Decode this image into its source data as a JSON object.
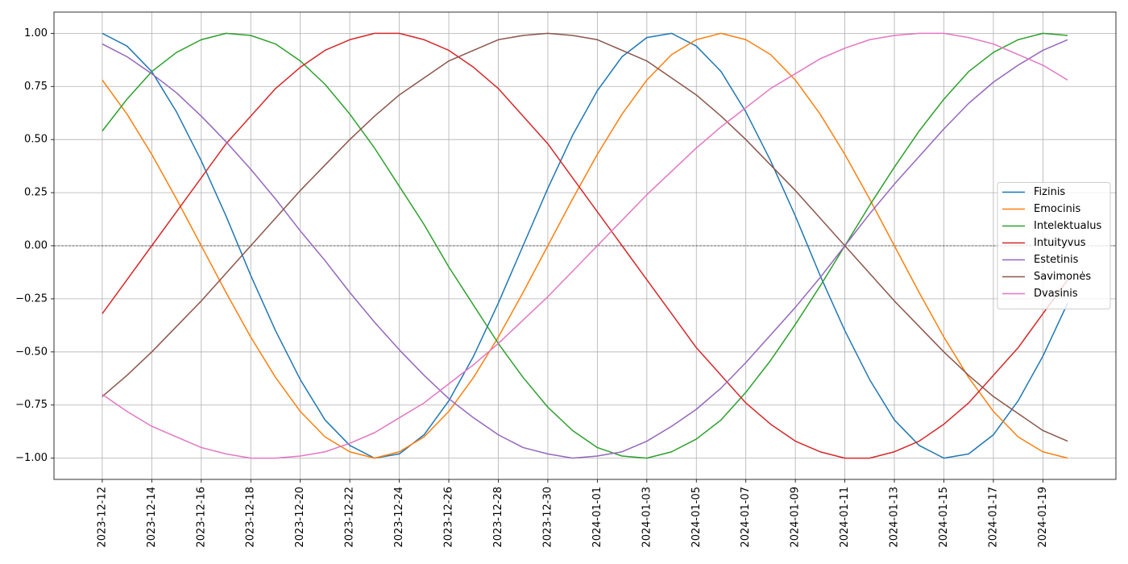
{
  "chart_data": {
    "type": "line",
    "x": [
      "2023-12-12",
      "2023-12-13",
      "2023-12-14",
      "2023-12-15",
      "2023-12-16",
      "2023-12-17",
      "2023-12-18",
      "2023-12-19",
      "2023-12-20",
      "2023-12-21",
      "2023-12-22",
      "2023-12-23",
      "2023-12-24",
      "2023-12-25",
      "2023-12-26",
      "2023-12-27",
      "2023-12-28",
      "2023-12-29",
      "2023-12-30",
      "2023-12-31",
      "2024-01-01",
      "2024-01-02",
      "2024-01-03",
      "2024-01-04",
      "2024-01-05",
      "2024-01-06",
      "2024-01-07",
      "2024-01-08",
      "2024-01-09",
      "2024-01-10",
      "2024-01-11",
      "2024-01-12",
      "2024-01-13",
      "2024-01-14",
      "2024-01-15",
      "2024-01-16",
      "2024-01-17",
      "2024-01-18",
      "2024-01-19",
      "2024-01-20"
    ],
    "xticks": [
      "2023-12-12",
      "2023-12-14",
      "2023-12-16",
      "2023-12-18",
      "2023-12-20",
      "2023-12-22",
      "2023-12-24",
      "2023-12-26",
      "2023-12-28",
      "2023-12-30",
      "2024-01-01",
      "2024-01-03",
      "2024-01-05",
      "2024-01-07",
      "2024-01-09",
      "2024-01-11",
      "2024-01-13",
      "2024-01-15",
      "2024-01-17",
      "2024-01-19"
    ],
    "ylim": [
      -1.1,
      1.1
    ],
    "yticks": [
      {
        "value": -1,
        "label": "−1.00"
      },
      {
        "value": -0.75,
        "label": "−0.75"
      },
      {
        "value": -0.5,
        "label": "−0.50"
      },
      {
        "value": -0.25,
        "label": "−0.25"
      },
      {
        "value": 0,
        "label": "0.00"
      },
      {
        "value": 0.25,
        "label": "0.25"
      },
      {
        "value": 0.5,
        "label": "0.50"
      },
      {
        "value": 0.75,
        "label": "0.75"
      },
      {
        "value": 1,
        "label": "1.00"
      }
    ],
    "grid": true,
    "reference_line": 0,
    "legend": "center right",
    "series": [
      {
        "name": "Fizinis",
        "color": "#1f77b4",
        "values": [
          1.0,
          0.94,
          0.82,
          0.63,
          0.4,
          0.14,
          -0.14,
          -0.4,
          -0.63,
          -0.82,
          -0.94,
          -1.0,
          -0.98,
          -0.89,
          -0.73,
          -0.52,
          -0.27,
          0,
          0.27,
          0.52,
          0.73,
          0.89,
          0.98,
          1.0,
          0.94,
          0.82,
          0.63,
          0.4,
          0.14,
          -0.14,
          -0.4,
          -0.63,
          -0.82,
          -0.94,
          -1.0,
          -0.98,
          -0.89,
          -0.73,
          -0.52,
          -0.27
        ]
      },
      {
        "name": "Emocinis",
        "color": "#ff7f0e",
        "values": [
          0.78,
          0.62,
          0.43,
          0.22,
          0,
          -0.22,
          -0.43,
          -0.62,
          -0.78,
          -0.9,
          -0.97,
          -1.0,
          -0.97,
          -0.9,
          -0.78,
          -0.62,
          -0.43,
          -0.22,
          0,
          0.22,
          0.43,
          0.62,
          0.78,
          0.9,
          0.97,
          1.0,
          0.97,
          0.9,
          0.78,
          0.62,
          0.43,
          0.22,
          0,
          -0.22,
          -0.43,
          -0.62,
          -0.78,
          -0.9,
          -0.97,
          -1.0
        ]
      },
      {
        "name": "Intelektualus",
        "color": "#2ca02c",
        "values": [
          0.54,
          0.69,
          0.82,
          0.91,
          0.97,
          1.0,
          0.99,
          0.95,
          0.87,
          0.76,
          0.62,
          0.46,
          0.28,
          0.1,
          -0.1,
          -0.28,
          -0.46,
          -0.62,
          -0.76,
          -0.87,
          -0.95,
          -0.99,
          -1.0,
          -0.97,
          -0.91,
          -0.82,
          -0.69,
          -0.54,
          -0.37,
          -0.19,
          0,
          0.19,
          0.37,
          0.54,
          0.69,
          0.82,
          0.91,
          0.97,
          1.0,
          0.99
        ]
      },
      {
        "name": "Intuityvus",
        "color": "#d62728",
        "values": [
          -0.32,
          -0.16,
          0,
          0.16,
          0.32,
          0.48,
          0.61,
          0.74,
          0.84,
          0.92,
          0.97,
          1.0,
          1.0,
          0.97,
          0.92,
          0.84,
          0.74,
          0.61,
          0.48,
          0.32,
          0.16,
          0,
          -0.16,
          -0.32,
          -0.48,
          -0.61,
          -0.74,
          -0.84,
          -0.92,
          -0.97,
          -1.0,
          -1.0,
          -0.97,
          -0.92,
          -0.84,
          -0.74,
          -0.61,
          -0.48,
          -0.32,
          -0.16
        ]
      },
      {
        "name": "Estetinis",
        "color": "#9467bd",
        "values": [
          0.95,
          0.89,
          0.81,
          0.72,
          0.61,
          0.49,
          0.36,
          0.22,
          0.07,
          -0.07,
          -0.22,
          -0.36,
          -0.49,
          -0.61,
          -0.72,
          -0.81,
          -0.89,
          -0.95,
          -0.98,
          -1.0,
          -0.99,
          -0.97,
          -0.92,
          -0.85,
          -0.77,
          -0.67,
          -0.55,
          -0.42,
          -0.29,
          -0.15,
          0,
          0.15,
          0.29,
          0.42,
          0.55,
          0.67,
          0.77,
          0.85,
          0.92,
          0.97
        ]
      },
      {
        "name": "Savimonės",
        "color": "#8c564b",
        "values": [
          -0.71,
          -0.61,
          -0.5,
          -0.38,
          -0.26,
          -0.13,
          0,
          0.13,
          0.26,
          0.38,
          0.5,
          0.61,
          0.71,
          0.79,
          0.87,
          0.92,
          0.97,
          0.99,
          1.0,
          0.99,
          0.97,
          0.92,
          0.87,
          0.79,
          0.71,
          0.61,
          0.5,
          0.38,
          0.26,
          0.13,
          0,
          -0.13,
          -0.26,
          -0.38,
          -0.5,
          -0.61,
          -0.71,
          -0.79,
          -0.87,
          -0.92
        ]
      },
      {
        "name": "Dvasinis",
        "color": "#e377c2",
        "values": [
          -0.7,
          -0.78,
          -0.85,
          -0.9,
          -0.95,
          -0.98,
          -1.0,
          -1.0,
          -0.99,
          -0.97,
          -0.93,
          -0.88,
          -0.81,
          -0.74,
          -0.65,
          -0.56,
          -0.46,
          -0.35,
          -0.24,
          -0.12,
          0,
          0.12,
          0.24,
          0.35,
          0.46,
          0.56,
          0.65,
          0.74,
          0.81,
          0.88,
          0.93,
          0.97,
          0.99,
          1.0,
          1.0,
          0.98,
          0.95,
          0.9,
          0.85,
          0.78
        ]
      }
    ]
  }
}
